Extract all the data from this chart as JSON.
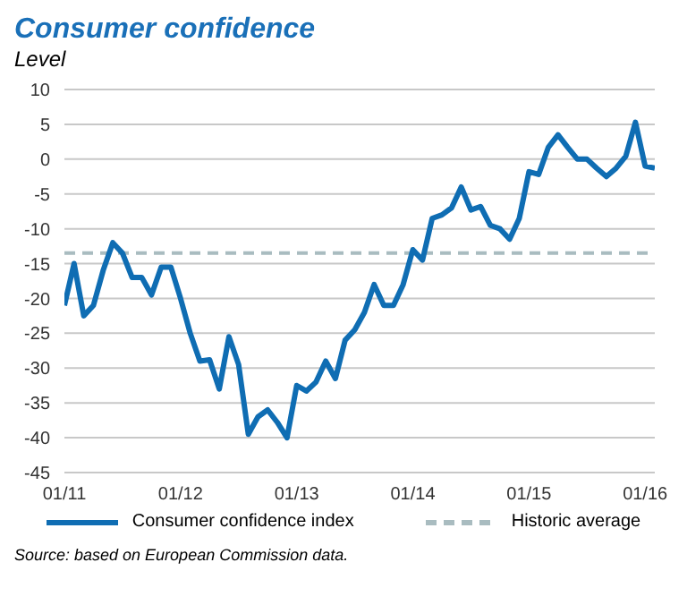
{
  "chart_data": {
    "type": "line",
    "title": "Consumer confidence",
    "subtitle": "Level",
    "x": [
      "2011-01",
      "2011-02",
      "2011-03",
      "2011-04",
      "2011-05",
      "2011-06",
      "2011-07",
      "2011-08",
      "2011-09",
      "2011-10",
      "2011-11",
      "2011-12",
      "2012-01",
      "2012-02",
      "2012-03",
      "2012-04",
      "2012-05",
      "2012-06",
      "2012-07",
      "2012-08",
      "2012-09",
      "2012-10",
      "2012-11",
      "2012-12",
      "2013-01",
      "2013-02",
      "2013-03",
      "2013-04",
      "2013-05",
      "2013-06",
      "2013-07",
      "2013-08",
      "2013-09",
      "2013-10",
      "2013-11",
      "2013-12",
      "2014-01",
      "2014-02",
      "2014-03",
      "2014-04",
      "2014-05",
      "2014-06",
      "2014-07",
      "2014-08",
      "2014-09",
      "2014-10",
      "2014-11",
      "2014-12",
      "2015-01",
      "2015-02",
      "2015-03",
      "2015-04",
      "2015-05",
      "2015-06",
      "2015-07",
      "2015-08",
      "2015-09",
      "2015-10",
      "2015-11",
      "2015-12",
      "2016-01",
      "2016-02"
    ],
    "series": [
      {
        "name": "Consumer confidence index",
        "color": "#0f6db3",
        "values": [
          -21,
          -15,
          -22.5,
          -21,
          -16,
          -12,
          -13.5,
          -17,
          -17,
          -19.5,
          -15.5,
          -15.5,
          -20,
          -25,
          -29,
          -28.8,
          -33,
          -25.5,
          -29.5,
          -39.5,
          -37,
          -36,
          -37.8,
          -40,
          -32.5,
          -33.3,
          -32,
          -29,
          -31.5,
          -26,
          -24.5,
          -22,
          -18,
          -21,
          -21,
          -18,
          -13,
          -14.5,
          -8.5,
          -8,
          -7,
          -4,
          -7.3,
          -6.8,
          -9.5,
          -10,
          -11.5,
          -8.5,
          -1.8,
          -2.2,
          1.7,
          3.5,
          1.7,
          0,
          0,
          -1.3,
          -2.5,
          -1.3,
          0.4,
          5.3,
          -1,
          -1.3
        ]
      }
    ],
    "ref_lines": [
      {
        "axis": "y",
        "value": -13.5,
        "label": "Historic average",
        "color": "#a9bcc0",
        "line_style": "dashed"
      }
    ],
    "xlim": [
      "2011-01",
      "2016-02"
    ],
    "xticks": [
      {
        "value": "2011-01",
        "label": "01/11"
      },
      {
        "value": "2012-01",
        "label": "01/12"
      },
      {
        "value": "2013-01",
        "label": "01/13"
      },
      {
        "value": "2014-01",
        "label": "01/14"
      },
      {
        "value": "2015-01",
        "label": "01/15"
      },
      {
        "value": "2016-01",
        "label": "01/16"
      }
    ],
    "ylim": [
      -45,
      10
    ],
    "yticks": [
      -45,
      -40,
      -35,
      -30,
      -25,
      -20,
      -15,
      -10,
      -5,
      0,
      5,
      10
    ],
    "grid": "y",
    "legend": "bottom",
    "marker": "none",
    "line_style": "solid",
    "annotations": [
      "Source: based on European Commission data."
    ]
  }
}
